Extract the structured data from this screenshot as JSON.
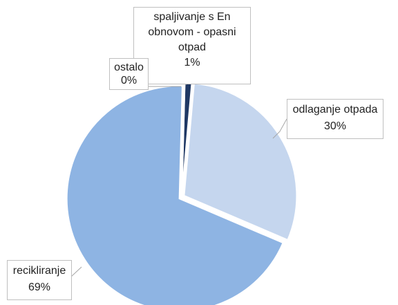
{
  "chart_data": {
    "type": "pie",
    "categories": [
      "spaljivanje s En obnovom - opasni otpad",
      "odlaganje otpada",
      "recikliranje",
      "ostalo"
    ],
    "values": [
      1,
      30,
      69,
      0
    ],
    "value_labels": [
      "1%",
      "30%",
      "69%",
      "0%"
    ],
    "colors": [
      "#1f3864",
      "#c5d6ee",
      "#8eb4e3",
      "#dce6f2"
    ]
  }
}
